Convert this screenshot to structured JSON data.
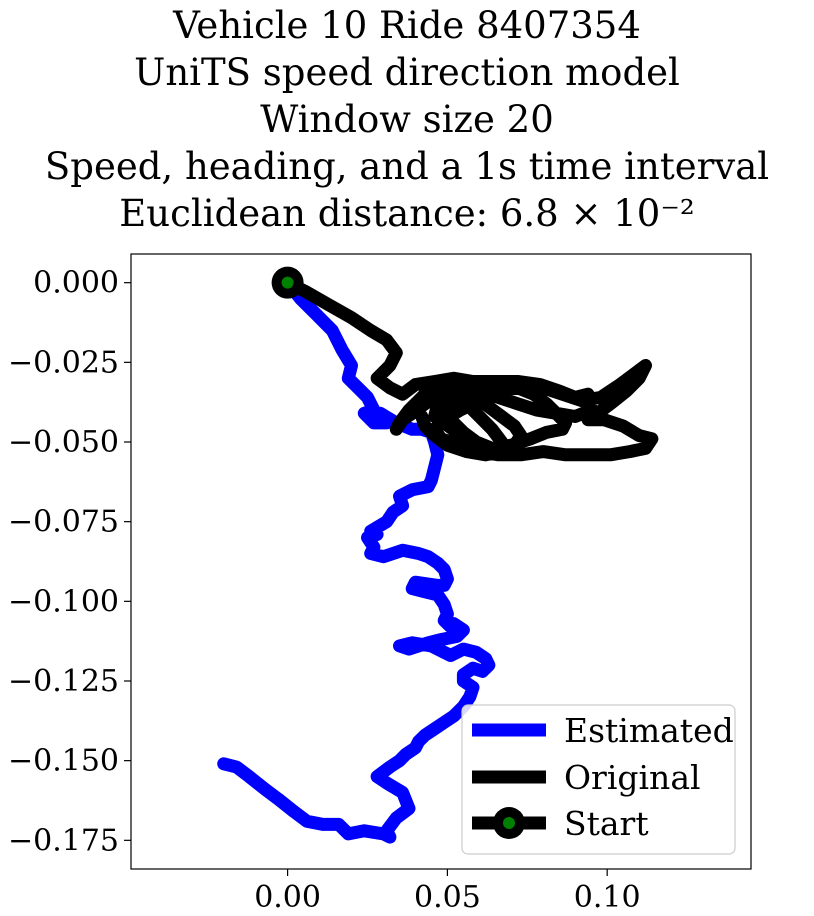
{
  "chart_data": {
    "type": "line",
    "title_lines": [
      "Vehicle 10 Ride 8407354",
      "UniTS speed direction model",
      "Window size 20",
      "Speed, heading, and a 1s time interval",
      "Euclidean distance: 6.8 × 10⁻²"
    ],
    "xlabel": "",
    "ylabel": "",
    "xlim": [
      -0.049,
      0.145
    ],
    "ylim": [
      -0.184,
      0.009
    ],
    "x_ticks": [
      0.0,
      0.05,
      0.1
    ],
    "x_tick_labels": [
      "0.00",
      "0.05",
      "0.10"
    ],
    "y_ticks": [
      0.0,
      -0.025,
      -0.05,
      -0.075,
      -0.1,
      -0.125,
      -0.15,
      -0.175
    ],
    "y_tick_labels": [
      "0.000",
      "−0.025",
      "−0.050",
      "−0.075",
      "−0.100",
      "−0.125",
      "−0.150",
      "−0.175"
    ],
    "grid": false,
    "legend_position": "lower-right",
    "colors": {
      "estimated": "#0000ff",
      "original": "#000000",
      "start_marker_face": "#008000",
      "start_marker_edge": "#000000"
    },
    "series": [
      {
        "name": "Estimated",
        "color": "#0000ff",
        "x": [
          0.0,
          0.004,
          0.009,
          0.014,
          0.017,
          0.02,
          0.019,
          0.022,
          0.025,
          0.027,
          0.024,
          0.027,
          0.031,
          0.029,
          0.034,
          0.039,
          0.042,
          0.045,
          0.046,
          0.047,
          0.046,
          0.045,
          0.044,
          0.039,
          0.035,
          0.036,
          0.033,
          0.031,
          0.026,
          0.028,
          0.025,
          0.027,
          0.026,
          0.03,
          0.036,
          0.041,
          0.044,
          0.047,
          0.049,
          0.05,
          0.049,
          0.047,
          0.04,
          0.039,
          0.043,
          0.047,
          0.049,
          0.05,
          0.049,
          0.051,
          0.052,
          0.055,
          0.053,
          0.048,
          0.044,
          0.038,
          0.035,
          0.039,
          0.045,
          0.051,
          0.055,
          0.059,
          0.062,
          0.063,
          0.061,
          0.058,
          0.055,
          0.055,
          0.058,
          0.057,
          0.055,
          0.052,
          0.049,
          0.046,
          0.043,
          0.041,
          0.04,
          0.037,
          0.035,
          0.032,
          0.028,
          0.031,
          0.036,
          0.038,
          0.034,
          0.031,
          0.032,
          0.03,
          0.024,
          0.019,
          0.016,
          0.011,
          0.006,
          0.002,
          -0.003,
          -0.007,
          -0.012,
          -0.016,
          -0.02
        ],
        "y": [
          0.0,
          -0.005,
          -0.01,
          -0.015,
          -0.021,
          -0.026,
          -0.03,
          -0.033,
          -0.036,
          -0.04,
          -0.041,
          -0.044,
          -0.044,
          -0.041,
          -0.044,
          -0.046,
          -0.046,
          -0.047,
          -0.05,
          -0.054,
          -0.058,
          -0.062,
          -0.064,
          -0.065,
          -0.067,
          -0.07,
          -0.072,
          -0.075,
          -0.078,
          -0.079,
          -0.08,
          -0.083,
          -0.085,
          -0.086,
          -0.084,
          -0.085,
          -0.086,
          -0.088,
          -0.09,
          -0.093,
          -0.095,
          -0.095,
          -0.094,
          -0.096,
          -0.097,
          -0.098,
          -0.101,
          -0.104,
          -0.106,
          -0.108,
          -0.107,
          -0.109,
          -0.111,
          -0.112,
          -0.113,
          -0.115,
          -0.114,
          -0.113,
          -0.114,
          -0.117,
          -0.115,
          -0.116,
          -0.118,
          -0.12,
          -0.122,
          -0.121,
          -0.123,
          -0.125,
          -0.127,
          -0.13,
          -0.133,
          -0.136,
          -0.138,
          -0.14,
          -0.142,
          -0.144,
          -0.146,
          -0.148,
          -0.15,
          -0.152,
          -0.155,
          -0.157,
          -0.16,
          -0.165,
          -0.168,
          -0.172,
          -0.174,
          -0.173,
          -0.172,
          -0.173,
          -0.17,
          -0.17,
          -0.169,
          -0.166,
          -0.162,
          -0.159,
          -0.155,
          -0.152,
          -0.151
        ]
      },
      {
        "name": "Original",
        "color": "#000000",
        "x": [
          0.0,
          0.006,
          0.013,
          0.02,
          0.026,
          0.031,
          0.034,
          0.032,
          0.028,
          0.032,
          0.036,
          0.04,
          0.046,
          0.052,
          0.058,
          0.065,
          0.072,
          0.079,
          0.085,
          0.09,
          0.094,
          0.095,
          0.09,
          0.084,
          0.078,
          0.072,
          0.066,
          0.059,
          0.053,
          0.047,
          0.043,
          0.039,
          0.036,
          0.034,
          0.035,
          0.038,
          0.041,
          0.044,
          0.048,
          0.052,
          0.056,
          0.06,
          0.064,
          0.067,
          0.065,
          0.062,
          0.058,
          0.053,
          0.049,
          0.046,
          0.047,
          0.05,
          0.054,
          0.058,
          0.063,
          0.068,
          0.074,
          0.08,
          0.086,
          0.092,
          0.098,
          0.104,
          0.108,
          0.112,
          0.11,
          0.106,
          0.101,
          0.097,
          0.094,
          0.099,
          0.105,
          0.11,
          0.114,
          0.112,
          0.107,
          0.101,
          0.094,
          0.087,
          0.08,
          0.073,
          0.066,
          0.06,
          0.054,
          0.048,
          0.046,
          0.049,
          0.054,
          0.06,
          0.066,
          0.072,
          0.077,
          0.081,
          0.084,
          0.087,
          0.086,
          0.081,
          0.076,
          0.07,
          0.064,
          0.059,
          0.055,
          0.052,
          0.05,
          0.052,
          0.055,
          0.059,
          0.063,
          0.067,
          0.071,
          0.073,
          0.071,
          0.067,
          0.062,
          0.056,
          0.05,
          0.046,
          0.043,
          0.042
        ],
        "y": [
          0.0,
          -0.003,
          -0.007,
          -0.011,
          -0.015,
          -0.018,
          -0.022,
          -0.026,
          -0.03,
          -0.033,
          -0.035,
          -0.032,
          -0.031,
          -0.03,
          -0.031,
          -0.031,
          -0.031,
          -0.032,
          -0.034,
          -0.036,
          -0.035,
          -0.04,
          -0.042,
          -0.041,
          -0.04,
          -0.038,
          -0.036,
          -0.034,
          -0.034,
          -0.035,
          -0.038,
          -0.041,
          -0.043,
          -0.046,
          -0.044,
          -0.04,
          -0.037,
          -0.034,
          -0.033,
          -0.035,
          -0.038,
          -0.042,
          -0.046,
          -0.05,
          -0.053,
          -0.054,
          -0.051,
          -0.047,
          -0.044,
          -0.042,
          -0.038,
          -0.035,
          -0.033,
          -0.032,
          -0.031,
          -0.031,
          -0.032,
          -0.033,
          -0.035,
          -0.037,
          -0.036,
          -0.032,
          -0.029,
          -0.026,
          -0.03,
          -0.034,
          -0.038,
          -0.041,
          -0.043,
          -0.043,
          -0.045,
          -0.048,
          -0.049,
          -0.052,
          -0.053,
          -0.054,
          -0.054,
          -0.054,
          -0.053,
          -0.054,
          -0.054,
          -0.053,
          -0.051,
          -0.049,
          -0.046,
          -0.043,
          -0.04,
          -0.037,
          -0.034,
          -0.033,
          -0.035,
          -0.038,
          -0.041,
          -0.044,
          -0.046,
          -0.047,
          -0.049,
          -0.051,
          -0.052,
          -0.05,
          -0.047,
          -0.044,
          -0.041,
          -0.038,
          -0.036,
          -0.036,
          -0.039,
          -0.042,
          -0.045,
          -0.048,
          -0.051,
          -0.053,
          -0.054,
          -0.053,
          -0.051,
          -0.048,
          -0.045,
          -0.042
        ]
      },
      {
        "name": "Start",
        "type": "marker",
        "x": [
          0.0
        ],
        "y": [
          0.0
        ]
      }
    ]
  }
}
